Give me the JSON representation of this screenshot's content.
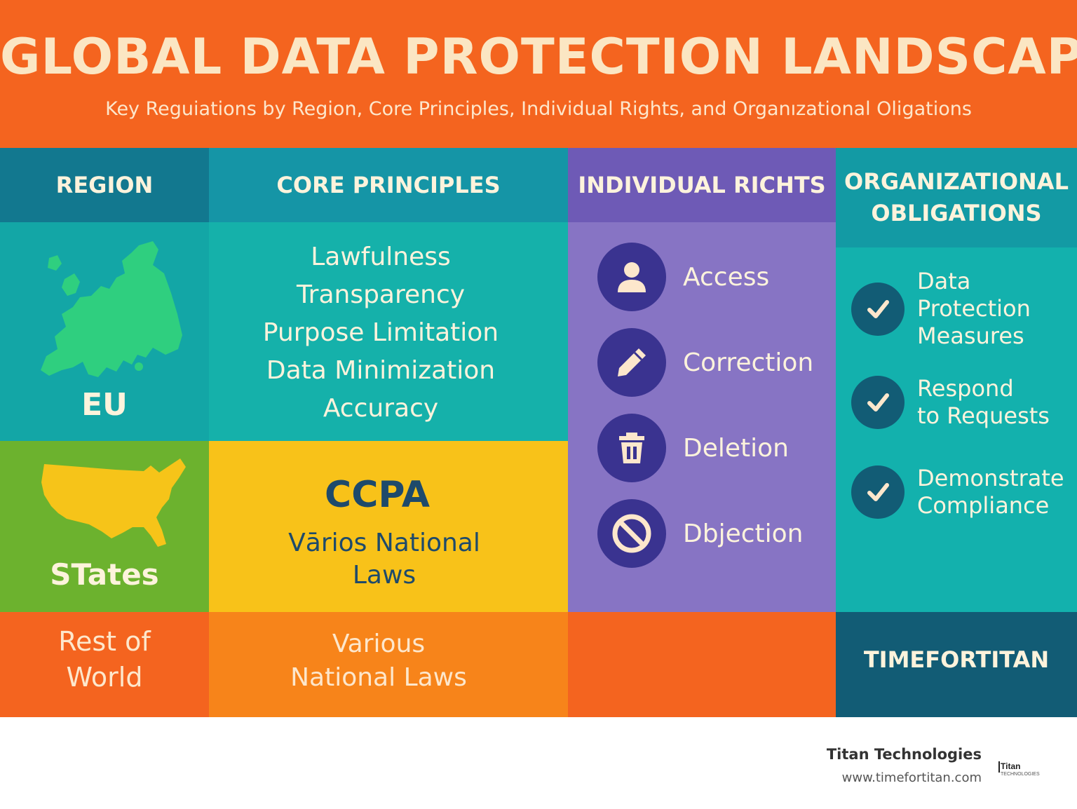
{
  "header": {
    "title": "GLOBAL DATA PROTECTION LANDSCAPE",
    "subtitle": "Key Reguiations by Region, Core Principles, Individual Rights, and Organızational Oligations"
  },
  "columns": {
    "region": "REGION",
    "core_principles": "CORE PRINCIPLES",
    "individual_rights": "INDIVIDUAL RICHTS",
    "obligations_line1": "ORGANIZATIONAL",
    "obligations_line2": "OBLIGATIONS"
  },
  "eu": {
    "label": "EU",
    "principles": [
      "Lawfulness",
      "Transparency",
      "Purpose Limitation",
      "Data Minimization",
      "Accuracy"
    ],
    "map_icon": "europe-map-icon"
  },
  "us": {
    "label": "STates",
    "law": "CCPA",
    "laws_line1": "Vārios National",
    "laws_line2": "Laws",
    "map_icon": "usa-map-icon"
  },
  "rest": {
    "label_line1": "Rest of",
    "label_line2": "World",
    "laws_line1": "Various",
    "laws_line2": "National Laws"
  },
  "rights": [
    {
      "label": "Access",
      "icon": "person-icon"
    },
    {
      "label": "Correction",
      "icon": "pencil-icon"
    },
    {
      "label": "Deletion",
      "icon": "trash-icon"
    },
    {
      "label": "Dbjection",
      "icon": "no-entry-icon"
    }
  ],
  "obligations": [
    {
      "lines": [
        "Data",
        "Protection",
        "Measures"
      ],
      "icon": "check-icon"
    },
    {
      "lines": [
        "Respond",
        "to Requests"
      ],
      "icon": "check-icon"
    },
    {
      "lines": [
        "Demonstrate",
        "Compliance"
      ],
      "icon": "check-icon"
    }
  ],
  "brand_cell": "TIMEFORTITAN",
  "footer": {
    "company": "Titan Technologies",
    "url": "www.timefortitan.com",
    "logo_text": "Titan",
    "logo_subtext": "TECHNOLOGIES"
  },
  "colors": {
    "orange": "#f4641f",
    "teal": "#13a6a6",
    "purple": "#8774c4",
    "yellow": "#f8c219",
    "green": "#6cb22e",
    "navy": "#125c75"
  }
}
